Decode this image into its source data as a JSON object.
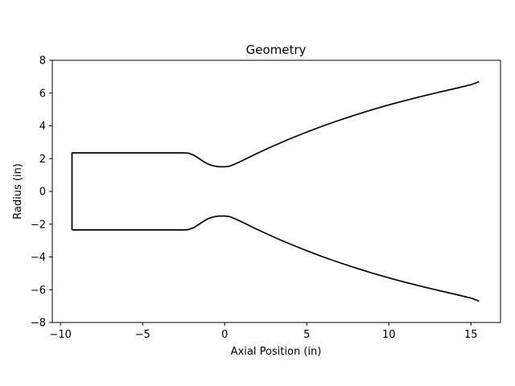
{
  "chart_data": {
    "type": "line",
    "title": "Geometry",
    "xlabel": "Axial Position (in)",
    "ylabel": "Radius (in)",
    "xlim": [
      -10.5,
      16.8
    ],
    "ylim": [
      -8,
      8
    ],
    "xticks": [
      -10,
      -5,
      0,
      5,
      10,
      15
    ],
    "yticks": [
      -8,
      -6,
      -4,
      -2,
      0,
      2,
      4,
      6,
      8
    ],
    "grid": false,
    "legend": "none",
    "line_color": "#000000",
    "series": [
      {
        "x": [
          -9.3,
          -9.3,
          -2.5,
          -2.2,
          -1.9,
          -1.6,
          -1.3,
          -1.0,
          -0.7,
          -0.4,
          0.0,
          0.3,
          0.6,
          1.0,
          2.0,
          3.0,
          4.0,
          5.0,
          6.0,
          7.0,
          8.0,
          9.0,
          10.0,
          11.0,
          12.0,
          13.0,
          14.0,
          15.0,
          15.5
        ],
        "y": [
          -2.35,
          2.35,
          2.35,
          2.33,
          2.22,
          2.03,
          1.83,
          1.66,
          1.56,
          1.51,
          1.5,
          1.54,
          1.66,
          1.84,
          2.33,
          2.79,
          3.22,
          3.62,
          4.0,
          4.35,
          4.68,
          4.99,
          5.28,
          5.55,
          5.8,
          6.04,
          6.27,
          6.51,
          6.7
        ]
      },
      {
        "x": [
          -9.3,
          -2.5,
          -2.2,
          -1.9,
          -1.6,
          -1.3,
          -1.0,
          -0.7,
          -0.4,
          0.0,
          0.3,
          0.6,
          1.0,
          2.0,
          3.0,
          4.0,
          5.0,
          6.0,
          7.0,
          8.0,
          9.0,
          10.0,
          11.0,
          12.0,
          13.0,
          14.0,
          15.0,
          15.5
        ],
        "y": [
          -2.35,
          -2.35,
          -2.33,
          -2.22,
          -2.03,
          -1.83,
          -1.66,
          -1.56,
          -1.51,
          -1.5,
          -1.54,
          -1.66,
          -1.84,
          -2.33,
          -2.79,
          -3.22,
          -3.62,
          -4.0,
          -4.35,
          -4.68,
          -4.99,
          -5.28,
          -5.55,
          -5.8,
          -6.04,
          -6.27,
          -6.51,
          -6.7
        ]
      }
    ]
  }
}
